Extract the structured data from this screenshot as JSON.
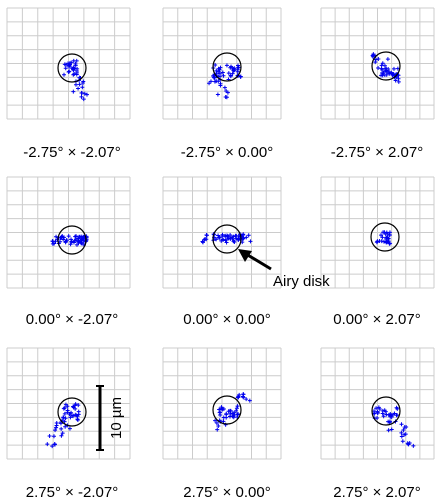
{
  "panels": [
    {
      "id": "m275_m207",
      "label": "-2.75° × -2.07°"
    },
    {
      "id": "m275_000",
      "label": "-2.75° × 0.00°"
    },
    {
      "id": "m275_p207",
      "label": "-2.75° × 2.07°"
    },
    {
      "id": "000_m207",
      "label": "0.00° × -2.07°"
    },
    {
      "id": "000_000",
      "label": "0.00° × 0.00°"
    },
    {
      "id": "000_p207",
      "label": "0.00° × 2.07°"
    },
    {
      "id": "p275_m207",
      "label": "2.75° × -2.07°"
    },
    {
      "id": "p275_000",
      "label": "2.75° × 0.00°"
    },
    {
      "id": "p275_p207",
      "label": "2.75° × 2.07°"
    }
  ],
  "annotations": {
    "airy_disk_label": "Airy disk",
    "scale_bar_label": "10 µm"
  },
  "colors": {
    "grid": "#cccccc",
    "points": "#0000ee",
    "circle": "#000000"
  }
}
